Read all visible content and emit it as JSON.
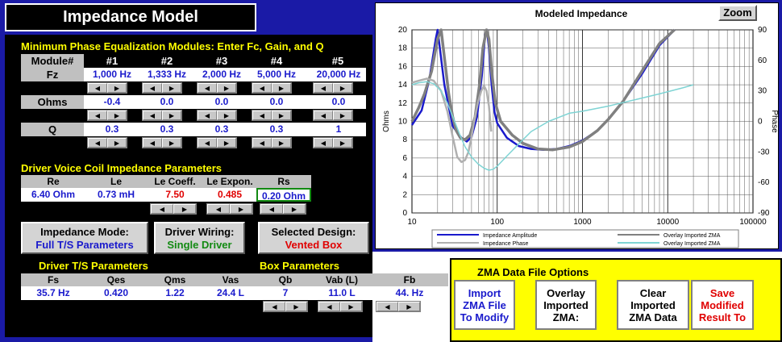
{
  "title": "Impedance Model",
  "eq": {
    "heading": "Minimum Phase Equalization Modules: Enter Fc, Gain, and Q",
    "module_label": "Module#",
    "modules": [
      "#1",
      "#2",
      "#3",
      "#4",
      "#5"
    ],
    "fz_label": "Fz",
    "fz": [
      "1,000 Hz",
      "1,333 Hz",
      "2,000 Hz",
      "5,000 Hz",
      "20,000 Hz"
    ],
    "ohms_label": "Ohms",
    "ohms": [
      "-0.4",
      "0.0",
      "0.0",
      "0.0",
      "0.0"
    ],
    "q_label": "Q",
    "q": [
      "0.3",
      "0.3",
      "0.3",
      "0.3",
      "1"
    ]
  },
  "vc": {
    "heading": "Driver Voice Coil Impedance Parameters",
    "headers": [
      "Re",
      "Le",
      "Le Coeff.",
      "Le Expon.",
      "Rs"
    ],
    "values": [
      "6.40 Ohm",
      "0.73 mH",
      "7.50",
      "0.485",
      "0.20 Ohm"
    ],
    "colors": [
      "#1a1acc",
      "#1a1acc",
      "#e00000",
      "#e00000",
      "#1a1acc"
    ]
  },
  "mode": {
    "label": "Impedance Mode:",
    "value": "Full T/S Parameters"
  },
  "wiring": {
    "label": "Driver Wiring:",
    "value": "Single Driver"
  },
  "design": {
    "label": "Selected Design:",
    "value": "Vented Box"
  },
  "ts": {
    "heading": "Driver T/S Parameters",
    "headers": [
      "Fs",
      "Qes",
      "Qms",
      "Vas"
    ],
    "values": [
      "35.7 Hz",
      "0.420",
      "1.22",
      "24.4 L"
    ]
  },
  "box": {
    "heading": "Box Parameters",
    "headers": [
      "Qb",
      "Vab (L)",
      "Fb"
    ],
    "values": [
      "7",
      "11.0 L",
      "44. Hz"
    ]
  },
  "zma": {
    "heading": "ZMA Data File Options",
    "import_label": "Import ZMA File To Modify",
    "overlay_label": "Overlay Imported ZMA:",
    "clear_label": "Clear Imported ZMA Data",
    "save_label": "Save Modified Result To"
  },
  "chart": {
    "zoom_label": "Zoom",
    "chart_data": {
      "type": "line",
      "title": "Modeled Impedance",
      "xlabel": "",
      "ylabel": "Ohms",
      "y2label": "Phase",
      "x_scale": "log",
      "xlim": [
        10,
        100000
      ],
      "ylim": [
        0,
        20
      ],
      "y2lim": [
        -90,
        90
      ],
      "x_ticks": [
        "10",
        "100",
        "1000",
        "10000",
        "100000"
      ],
      "y_ticks": [
        "0",
        "2",
        "4",
        "6",
        "8",
        "10",
        "12",
        "14",
        "16",
        "18",
        "20"
      ],
      "y2_ticks": [
        "-90",
        "-60",
        "-30",
        "0",
        "30",
        "60",
        "90"
      ],
      "grid": true,
      "legend_position": "bottom",
      "series": [
        {
          "name": "Impedance Amplitude",
          "color": "#1a1acc",
          "axis": "left",
          "x": [
            10,
            13,
            16,
            19,
            20,
            24,
            30,
            38,
            44,
            50,
            58,
            66,
            72,
            76,
            80,
            86,
            93,
            100,
            130,
            180,
            250,
            350,
            500,
            700,
            1000,
            1500,
            2000,
            3000,
            5000,
            8000,
            12000
          ],
          "y": [
            9.6,
            11.2,
            14.6,
            19,
            20,
            14,
            9.5,
            8.2,
            7.8,
            8.3,
            10.5,
            15,
            19.5,
            20,
            18,
            14,
            11,
            9.8,
            8.2,
            7.3,
            7.0,
            6.9,
            7.0,
            7.3,
            7.9,
            9.0,
            10.2,
            12.2,
            15.2,
            18.3,
            20
          ]
        },
        {
          "name": "Overlay Imported ZMA",
          "color": "#808080",
          "axis": "left",
          "x": [
            10,
            12,
            14,
            17,
            20,
            22,
            24,
            27,
            30,
            33,
            37,
            42,
            48,
            55,
            62,
            68,
            75,
            80,
            86,
            95,
            110,
            150,
            200,
            300,
            450,
            700,
            1000,
            1500,
            2000,
            3000,
            5000,
            8000,
            12000
          ],
          "y": [
            10,
            11.5,
            13,
            15.5,
            19,
            20,
            17,
            13,
            10.5,
            9,
            8.2,
            8.0,
            8.5,
            10.5,
            14,
            18,
            20,
            19,
            15.5,
            12,
            10,
            8.5,
            7.6,
            7.0,
            6.9,
            7.2,
            7.8,
            9.0,
            10.2,
            12.2,
            15.5,
            18.5,
            20
          ]
        },
        {
          "name": "Impedance Phase",
          "color": "#b0b0b0",
          "axis": "right",
          "x": [
            10,
            12,
            15,
            18,
            22,
            26,
            30,
            34,
            38,
            42,
            46,
            50,
            55,
            60,
            65,
            70,
            75,
            80,
            85
          ],
          "y": [
            38,
            40,
            42,
            40,
            30,
            10,
            -15,
            -35,
            -40,
            -38,
            -30,
            -15,
            5,
            20,
            30,
            35,
            30,
            15,
            -10
          ]
        },
        {
          "name": "Overlay Imported ZMA",
          "color": "#7fd4d4",
          "axis": "right",
          "x": [
            10,
            12,
            15,
            18,
            22,
            26,
            30,
            36,
            42,
            50,
            60,
            70,
            80,
            90,
            100,
            130,
            180,
            250,
            400,
            700,
            1000,
            2000,
            4000,
            8000,
            15000,
            20000
          ],
          "y": [
            36,
            38,
            39,
            37,
            30,
            18,
            5,
            -12,
            -25,
            -35,
            -42,
            -46,
            -48,
            -47,
            -44,
            -34,
            -22,
            -10,
            0,
            8,
            10,
            15,
            21,
            27,
            33,
            36
          ]
        }
      ]
    }
  }
}
